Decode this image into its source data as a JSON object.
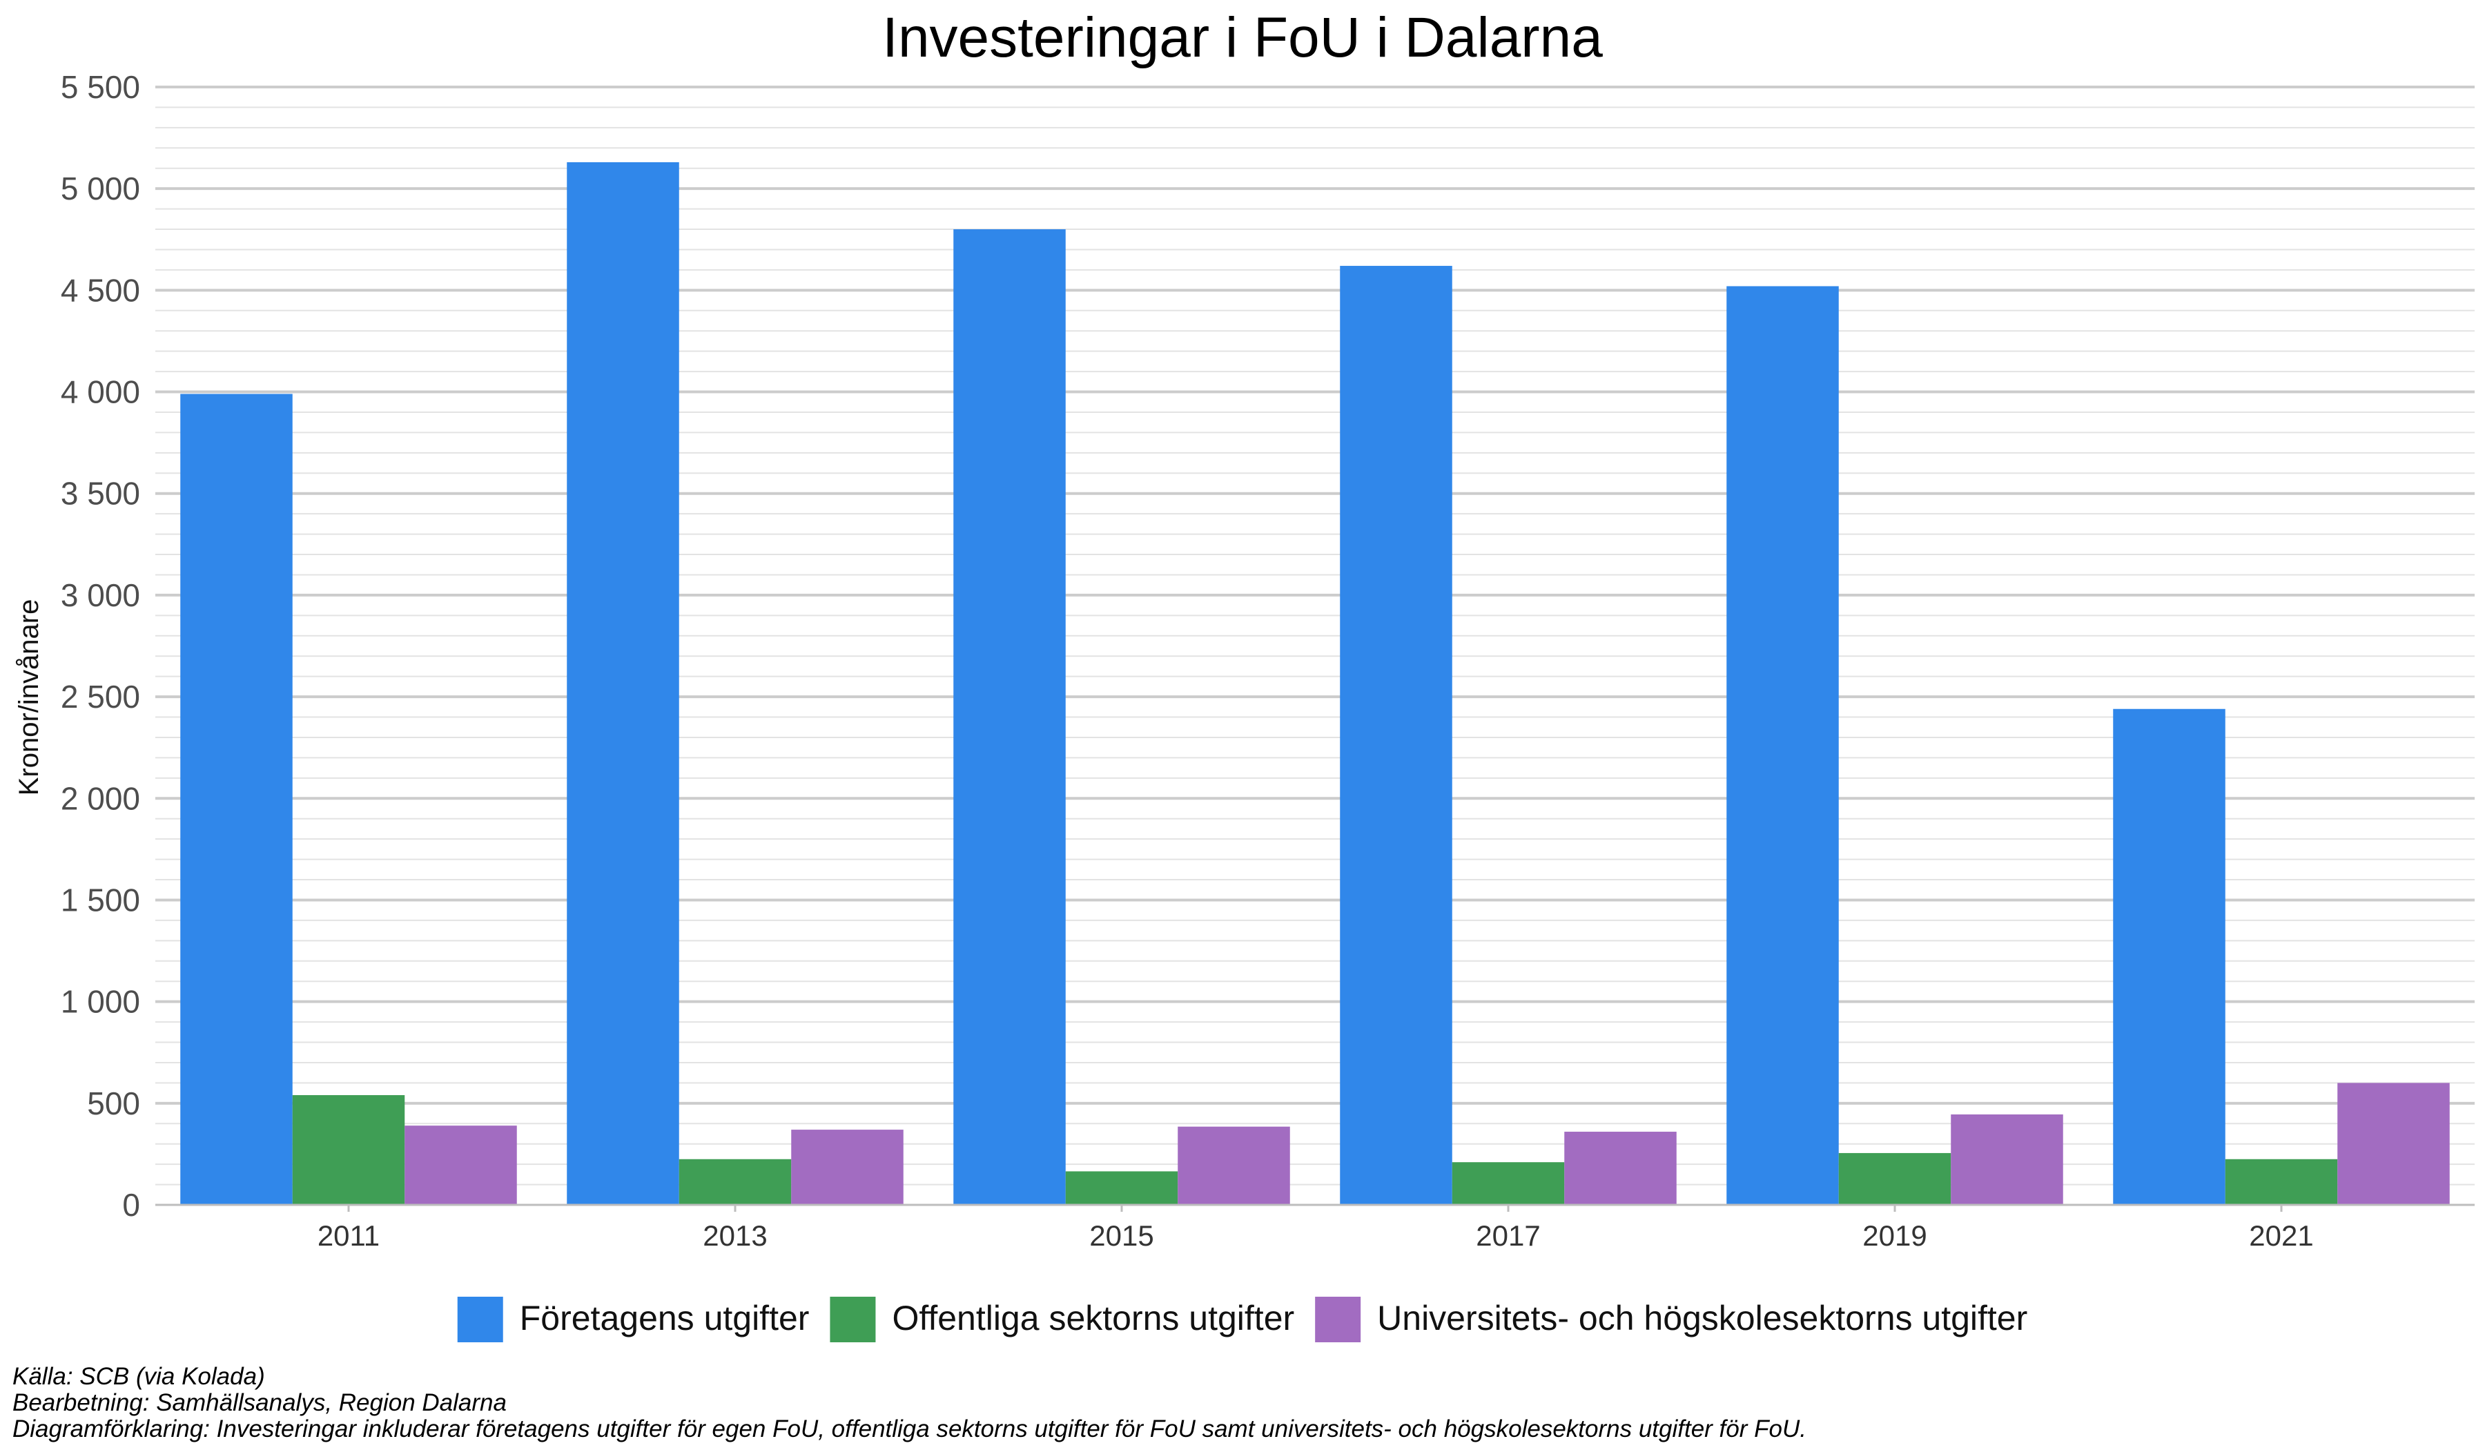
{
  "chart_data": {
    "type": "bar",
    "title": "Investeringar i FoU i Dalarna",
    "xlabel": "",
    "ylabel": "Kronor/invånare",
    "categories": [
      "2011",
      "2013",
      "2015",
      "2017",
      "2019",
      "2021"
    ],
    "ylim": [
      0,
      5500
    ],
    "yticks": [
      0,
      500,
      1000,
      1500,
      2000,
      2500,
      3000,
      3500,
      4000,
      4500,
      5000,
      5500
    ],
    "ytick_labels": [
      "0",
      "500",
      "1 000",
      "1 500",
      "2 000",
      "2 500",
      "3 000",
      "3 500",
      "4 000",
      "4 500",
      "5 000",
      "5 500"
    ],
    "grid": true,
    "legend_position": "bottom",
    "series": [
      {
        "name": "Företagens utgifter",
        "color": "#3087EA",
        "values": [
          3990,
          5130,
          4800,
          4620,
          4520,
          2440
        ]
      },
      {
        "name": "Offentliga sektorns utgifter",
        "color": "#3F9E55",
        "values": [
          540,
          225,
          165,
          210,
          255,
          225
        ]
      },
      {
        "name": "Universitets- och högskolesektorns utgifter",
        "color": "#A26CC1",
        "values": [
          390,
          370,
          385,
          360,
          445,
          600
        ]
      }
    ]
  },
  "caption": {
    "source": "Källa: SCB (via Kolada)",
    "processing": "Bearbetning: Samhällsanalys, Region Dalarna",
    "explanation": "Diagramförklaring: Investeringar inkluderar företagens utgifter för egen FoU, offentliga sektorns utgifter för FoU samt universitets- och högskolesektorns utgifter för FoU."
  }
}
